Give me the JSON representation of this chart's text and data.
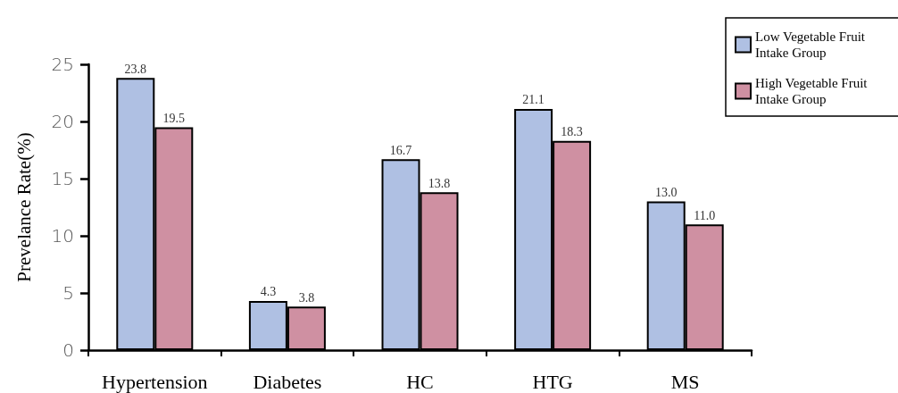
{
  "chart_data": {
    "type": "bar",
    "ylabel": "Prevelance Rate(%)",
    "categories": [
      "Hypertension",
      "Diabetes",
      "HC",
      "HTG",
      "MS"
    ],
    "series": [
      {
        "name": "Low Vegetable Fruit Intake Group",
        "color": "#afc0e3",
        "values": [
          23.8,
          4.3,
          16.7,
          21.1,
          13.0
        ],
        "value_labels": [
          "23.8",
          "4.3",
          "16.7",
          "21.1",
          "13.0"
        ]
      },
      {
        "name": "High Vegetable Fruit Intake Group",
        "color": "#cf90a2",
        "values": [
          19.5,
          3.8,
          13.8,
          18.3,
          11.0
        ],
        "value_labels": [
          "19.5",
          "3.8",
          "13.8",
          "18.3",
          "11.0"
        ]
      }
    ],
    "ylim": [
      0,
      25
    ],
    "yticks": [
      0,
      5,
      10,
      15,
      20,
      25
    ],
    "legend": "top right",
    "grid": false
  }
}
